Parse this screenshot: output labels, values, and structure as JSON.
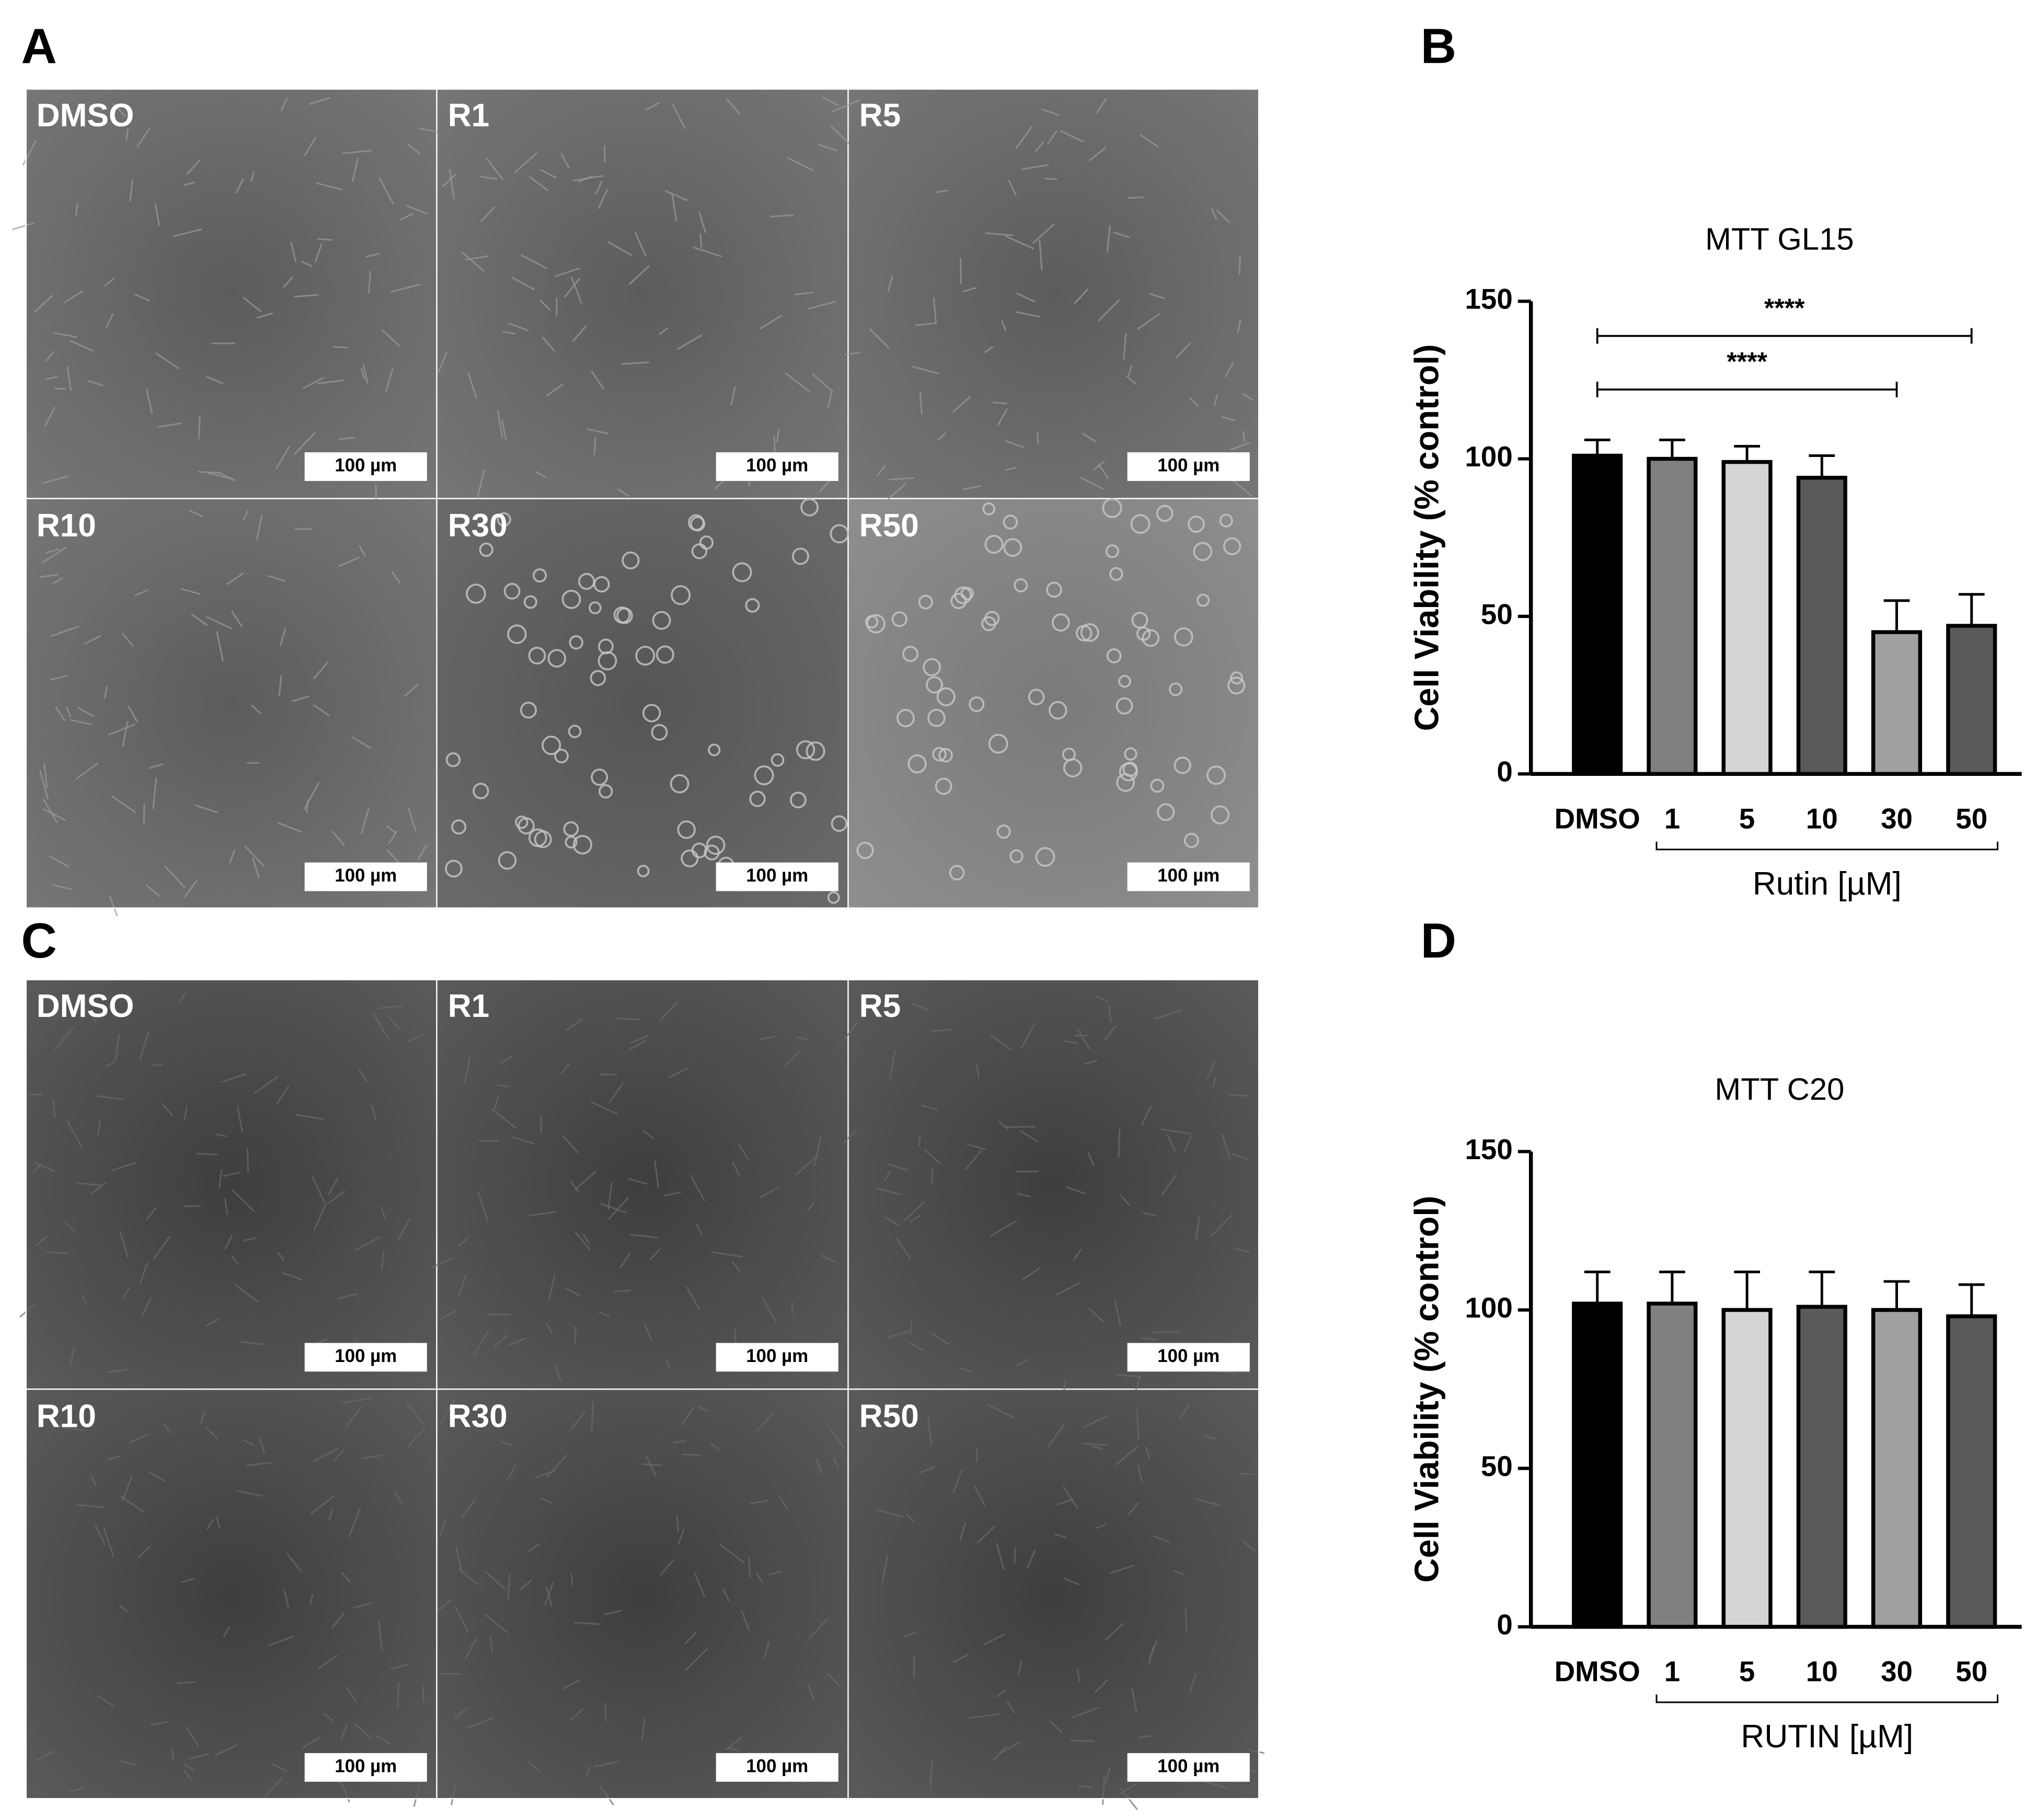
{
  "figure": {
    "panel_labels": [
      "A",
      "B",
      "C",
      "D"
    ],
    "micrographs": [
      {
        "images": [
          {
            "label": "DMSO",
            "scale_bar": "100 µm"
          },
          {
            "label": "R1",
            "scale_bar": "100 µm"
          },
          {
            "label": "R5",
            "scale_bar": "100 µm"
          },
          {
            "label": "R10",
            "scale_bar": "100 µm"
          },
          {
            "label": "R30",
            "scale_bar": "100 µm"
          },
          {
            "label": "R50",
            "scale_bar": "100 µm"
          }
        ]
      },
      {
        "images": [
          {
            "label": "DMSO",
            "scale_bar": "100 µm"
          },
          {
            "label": "R1",
            "scale_bar": "100 µm"
          },
          {
            "label": "R5",
            "scale_bar": "100 µm"
          },
          {
            "label": "R10",
            "scale_bar": "100 µm"
          },
          {
            "label": "R30",
            "scale_bar": "100 µm"
          },
          {
            "label": "R50",
            "scale_bar": "100 µm"
          }
        ]
      }
    ]
  },
  "chart_data": [
    {
      "type": "bar",
      "title": "MTT GL15",
      "y_label": "Cell Viability (% control)",
      "categories": [
        "DMSO",
        "1",
        "5",
        "10",
        "30",
        "50"
      ],
      "group_label": "Rutin [µM]",
      "values": [
        101,
        100,
        99,
        94,
        45,
        47
      ],
      "errors": [
        5,
        6,
        5,
        7,
        10,
        10
      ],
      "colors": [
        "#000000",
        "#808080",
        "#d4d4d4",
        "#5a5a5a",
        "#a0a0a0",
        "#5a5a5a"
      ],
      "ylim": [
        0,
        150
      ],
      "yticks": [
        0,
        50,
        100,
        150
      ],
      "significance": [
        {
          "label": "****",
          "from": 0,
          "to": 5,
          "y": 139
        },
        {
          "label": "****",
          "from": 0,
          "to": 4,
          "y": 122
        }
      ]
    },
    {
      "type": "bar",
      "title": "MTT C20",
      "y_label": "Cell Viability (% control)",
      "categories": [
        "DMSO",
        "1",
        "5",
        "10",
        "30",
        "50"
      ],
      "group_label": "RUTIN [µM]",
      "values": [
        102,
        102,
        100,
        101,
        100,
        98
      ],
      "errors": [
        10,
        10,
        12,
        11,
        9,
        10
      ],
      "colors": [
        "#000000",
        "#808080",
        "#d4d4d4",
        "#5a5a5a",
        "#a0a0a0",
        "#5a5a5a"
      ],
      "ylim": [
        0,
        150
      ],
      "yticks": [
        0,
        50,
        100,
        150
      ]
    }
  ]
}
